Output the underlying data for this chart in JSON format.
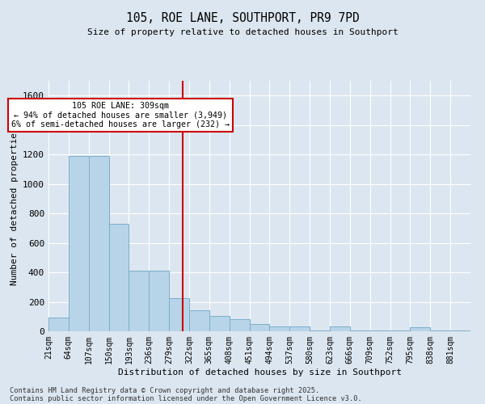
{
  "title": "105, ROE LANE, SOUTHPORT, PR9 7PD",
  "subtitle": "Size of property relative to detached houses in Southport",
  "xlabel": "Distribution of detached houses by size in Southport",
  "ylabel": "Number of detached properties",
  "bar_color": "#b8d4e8",
  "bar_edge_color": "#7aafc8",
  "background_color": "#dce6f0",
  "grid_color": "#ffffff",
  "vline_x": 309,
  "vline_color": "#cc0000",
  "annotation_text": "105 ROE LANE: 309sqm\n← 94% of detached houses are smaller (3,949)\n6% of semi-detached houses are larger (232) →",
  "annotation_box_color": "#ffffff",
  "annotation_box_edge": "#cc0000",
  "categories": [
    "21sqm",
    "64sqm",
    "107sqm",
    "150sqm",
    "193sqm",
    "236sqm",
    "279sqm",
    "322sqm",
    "365sqm",
    "408sqm",
    "451sqm",
    "494sqm",
    "537sqm",
    "580sqm",
    "623sqm",
    "666sqm",
    "709sqm",
    "752sqm",
    "795sqm",
    "838sqm",
    "881sqm"
  ],
  "bin_edges": [
    21,
    64,
    107,
    150,
    193,
    236,
    279,
    322,
    365,
    408,
    451,
    494,
    537,
    580,
    623,
    666,
    709,
    752,
    795,
    838,
    881,
    924
  ],
  "values": [
    95,
    1190,
    1190,
    730,
    410,
    410,
    225,
    145,
    105,
    80,
    50,
    35,
    35,
    5,
    35,
    5,
    5,
    5,
    25,
    5,
    5
  ],
  "ylim": [
    0,
    1700
  ],
  "yticks": [
    0,
    200,
    400,
    600,
    800,
    1000,
    1200,
    1400,
    1600
  ],
  "footnote1": "Contains HM Land Registry data © Crown copyright and database right 2025.",
  "footnote2": "Contains public sector information licensed under the Open Government Licence v3.0."
}
